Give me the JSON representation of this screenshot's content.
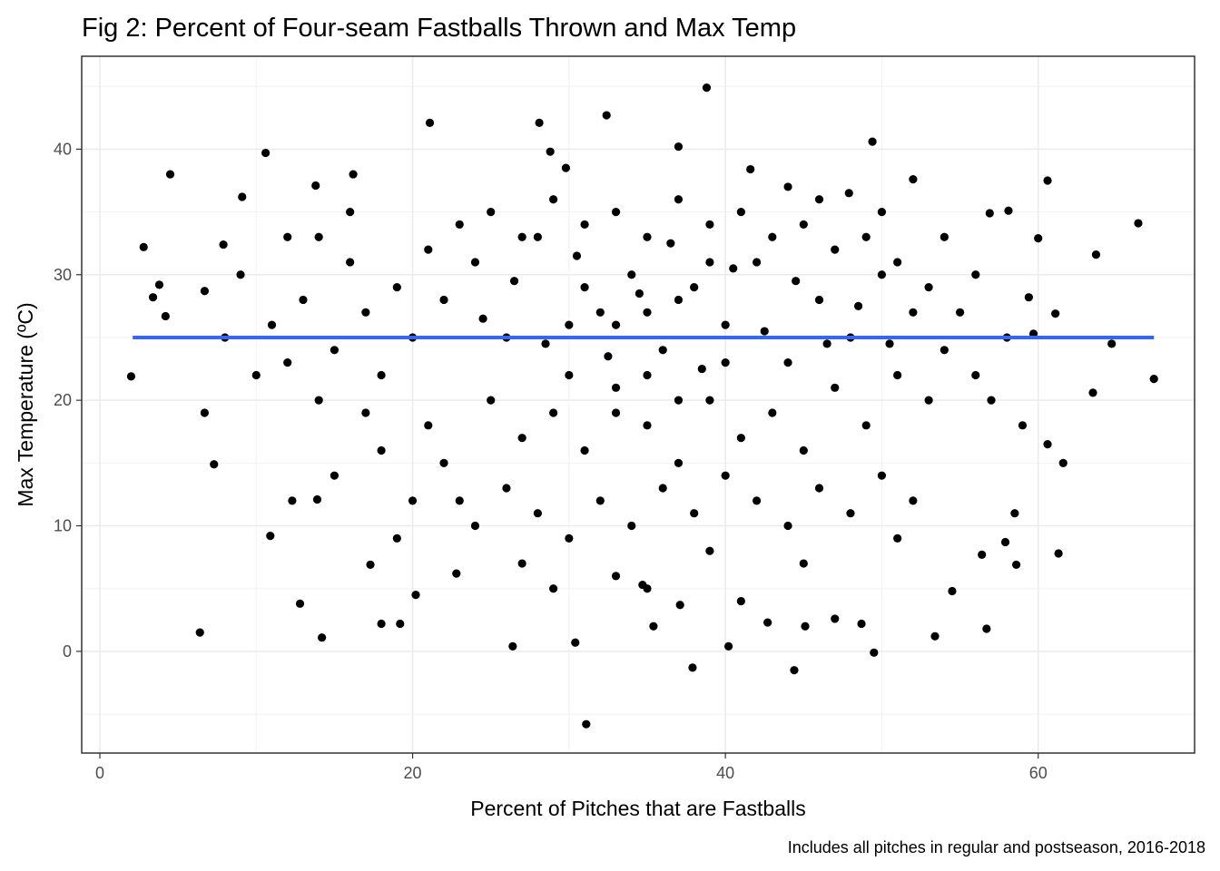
{
  "chart_data": {
    "type": "scatter",
    "title": "Fig 2: Percent of Four-seam Fastballs Thrown and Max Temp",
    "x_label": "Percent of Pitches that are Fastballs",
    "y_label": "Max Temperature (ºC)",
    "caption": "Includes all pitches in regular and postseason, 2016-2018",
    "color": "#000000",
    "xlim": [
      -1.16,
      70.0
    ],
    "ylim": [
      -8.1,
      47.4
    ],
    "xticks": [
      0,
      20,
      40,
      60
    ],
    "yticks": [
      0,
      10,
      20,
      30,
      40
    ],
    "xminorticks": [
      10,
      30,
      50,
      70
    ],
    "yminorticks": [
      -5,
      5,
      15,
      25,
      35,
      45
    ],
    "grid": true,
    "trend": {
      "color": "#3366ff",
      "x": [
        2.1,
        67.4
      ],
      "y": [
        25.0,
        25.0
      ]
    },
    "x": [
      2.0,
      2.8,
      4.5,
      6.4,
      10.6,
      14.2,
      12.8,
      21.1,
      28.1,
      32.4,
      38.8,
      49.4,
      60.6,
      66.4,
      67.4,
      31.1,
      37.9,
      44.4,
      49.5,
      30.4,
      26.4,
      40.2,
      56.7,
      53.4,
      61.3,
      61.6,
      63.5,
      60.6,
      64.7,
      10.9,
      12.3,
      13.9,
      17.3,
      7.3,
      6.7,
      3.8,
      3.4,
      4.2,
      6.7,
      9.1,
      7.9,
      18.0,
      19.2,
      20.2,
      22.8,
      34.7,
      35.4,
      37.1,
      42.7,
      45.1,
      47.0,
      48.7,
      54.5,
      57.9,
      58.5,
      56.4,
      58.6,
      59.4,
      59.7,
      61.1,
      63.7,
      60.0,
      56.9,
      58.1,
      52.0,
      37.0,
      28.8,
      16.2,
      13.8,
      29.8,
      41.6,
      47.9,
      22,
      24,
      26,
      28,
      30,
      32,
      34,
      36,
      38,
      40,
      42,
      44,
      46,
      48,
      50,
      52,
      25,
      27,
      29,
      31,
      33,
      35,
      37,
      39,
      41,
      43,
      45,
      47,
      49,
      51,
      23,
      25,
      27,
      29,
      31,
      33,
      35,
      37,
      39,
      41,
      43,
      45,
      47,
      49,
      51,
      53,
      55,
      54,
      56,
      53,
      20,
      19,
      18,
      17,
      16,
      15,
      14,
      13,
      12,
      11,
      21,
      22,
      23,
      24,
      26,
      28,
      30,
      32,
      34,
      36,
      38,
      40,
      42,
      44,
      46,
      48,
      50,
      52,
      27,
      33,
      39,
      45,
      51,
      35,
      29,
      41,
      24.5,
      26.5,
      28.5,
      30.5,
      32.5,
      34.5,
      36.5,
      38.5,
      40.5,
      42.5,
      44.5,
      46.5,
      48.5,
      50.5,
      31,
      33,
      35,
      37,
      39,
      35,
      37,
      33,
      30,
      40,
      57,
      58,
      56,
      59,
      18,
      17,
      20,
      19,
      15,
      14,
      10,
      9,
      8,
      12,
      16,
      21,
      46,
      50,
      54,
      44
    ],
    "y": [
      21.9,
      32.2,
      38.0,
      1.5,
      39.7,
      1.1,
      3.8,
      42.1,
      42.1,
      42.7,
      44.9,
      40.6,
      37.5,
      34.1,
      21.7,
      -5.8,
      -1.3,
      -1.5,
      -0.1,
      0.7,
      0.4,
      0.4,
      1.8,
      1.2,
      7.8,
      15.0,
      20.6,
      16.5,
      24.5,
      9.2,
      12.0,
      12.1,
      6.9,
      14.9,
      19.0,
      29.2,
      28.2,
      26.7,
      28.7,
      36.2,
      32.4,
      2.2,
      2.2,
      4.5,
      6.2,
      5.3,
      2.0,
      3.7,
      2.3,
      2.0,
      2.6,
      2.2,
      4.8,
      8.7,
      11.0,
      7.7,
      6.9,
      28.2,
      25.3,
      26.9,
      31.6,
      32.9,
      34.9,
      35.1,
      37.6,
      40.2,
      39.8,
      38.0,
      37.1,
      38.5,
      38.4,
      36.5,
      28,
      31,
      25,
      33,
      22,
      27,
      30,
      24,
      29,
      26,
      31,
      23,
      28,
      25,
      30,
      27,
      20,
      17,
      19,
      16,
      21,
      18,
      15,
      20,
      17,
      19,
      16,
      21,
      18,
      22,
      34,
      35,
      33,
      36,
      34,
      35,
      33,
      36,
      34,
      35,
      33,
      34,
      32,
      33,
      31,
      29,
      27,
      24,
      22,
      20,
      25,
      29,
      22,
      27,
      31,
      24,
      20,
      28,
      23,
      26,
      18,
      15,
      12,
      10,
      13,
      11,
      9,
      12,
      10,
      13,
      11,
      14,
      12,
      10,
      13,
      11,
      14,
      12,
      7,
      6,
      8,
      7,
      9,
      5,
      5,
      4,
      26.5,
      29.5,
      24.5,
      31.5,
      23.5,
      28.5,
      32.5,
      22.5,
      30.5,
      25.5,
      29.5,
      24.5,
      27.5,
      24.5,
      29,
      26,
      27,
      28,
      31,
      22,
      20,
      19,
      26,
      23,
      20,
      25,
      30,
      18,
      16,
      19,
      12,
      9,
      14,
      33,
      22,
      30,
      25,
      33,
      35,
      32,
      36,
      35,
      33,
      37
    ]
  }
}
